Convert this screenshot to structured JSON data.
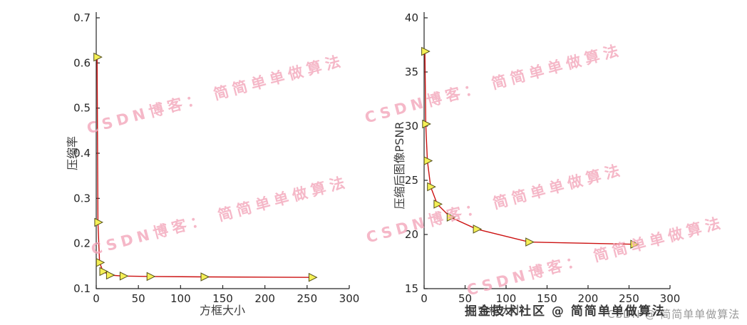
{
  "watermarks": {
    "diagonal_text": "CSDN博客： 简简单单做算法",
    "diagonal_color": "#f3a7bb",
    "bottom_dark": "掘金技术社区 @ 简简单单做算法",
    "bottom_dark_color": "#3a3a3a",
    "bottom_light": "CSDN @ 简简单单做算法",
    "bottom_light_color": "#9a9a9a"
  },
  "chart_data": [
    {
      "type": "line",
      "title": "",
      "xlabel": "方框大小",
      "ylabel": "压缩率",
      "xlim": [
        0,
        300
      ],
      "ylim": [
        0.1,
        0.7
      ],
      "xticks": [
        "0",
        "50",
        "100",
        "150",
        "200",
        "250",
        "300"
      ],
      "yticks": [
        "0.1",
        "0.2",
        "0.3",
        "0.4",
        "0.5",
        "0.6",
        "0.7"
      ],
      "x": [
        1,
        2,
        4,
        8,
        16,
        32,
        64,
        128,
        256
      ],
      "y": [
        0.613,
        0.247,
        0.158,
        0.138,
        0.13,
        0.128,
        0.127,
        0.126,
        0.125
      ],
      "grid": false,
      "legend": null,
      "line_color": "#cc1111",
      "marker": "triangle-right",
      "marker_fill": "#f5f056",
      "marker_edge": "#55511a",
      "axis_color": "#262626"
    },
    {
      "type": "line",
      "title": "",
      "xlabel": "方框大小",
      "ylabel": "压缩后图像PSNR",
      "xlim": [
        0,
        300
      ],
      "ylim": [
        15,
        40
      ],
      "xticks": [
        "0",
        "50",
        "100",
        "150",
        "200",
        "250",
        "300"
      ],
      "yticks": [
        "15",
        "20",
        "25",
        "30",
        "35",
        "40"
      ],
      "x": [
        1,
        2,
        4,
        8,
        16,
        32,
        64,
        128,
        256
      ],
      "y": [
        36.9,
        30.2,
        26.8,
        24.4,
        22.8,
        21.6,
        20.5,
        19.3,
        19.1
      ],
      "grid": false,
      "legend": null,
      "line_color": "#cc1111",
      "marker": "triangle-right",
      "marker_fill": "#f5f056",
      "marker_edge": "#55511a",
      "axis_color": "#262626"
    }
  ]
}
